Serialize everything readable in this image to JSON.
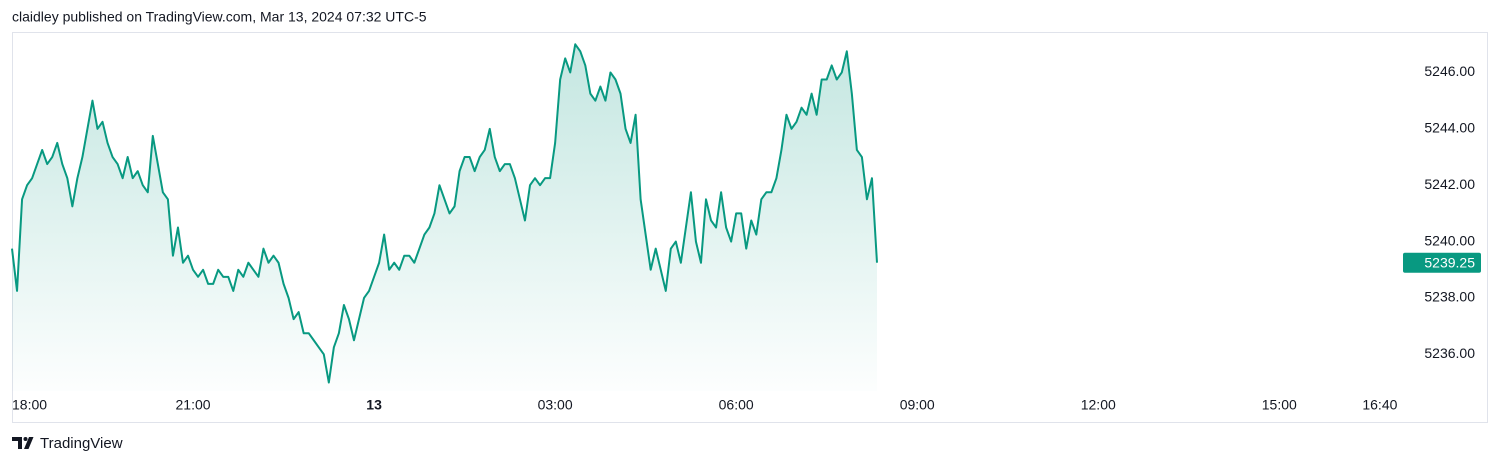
{
  "chart_data": {
    "type": "area",
    "title": "claidley published on TradingView.com, Mar 13, 2024 07:32 UTC-5",
    "brand": "TradingView",
    "color": "#089981",
    "grid": false,
    "last_price_label": "5239.25",
    "x": [
      "18:00",
      "18:05",
      "18:10",
      "18:15",
      "18:20",
      "18:25",
      "18:30",
      "18:35",
      "18:40",
      "18:45",
      "18:50",
      "18:55",
      "19:00",
      "19:05",
      "19:10",
      "19:15",
      "19:20",
      "19:25",
      "19:30",
      "19:35",
      "19:40",
      "19:45",
      "19:50",
      "19:55",
      "20:00",
      "20:05",
      "20:10",
      "20:15",
      "20:20",
      "20:25",
      "20:30",
      "20:35",
      "20:40",
      "20:45",
      "20:50",
      "20:55",
      "21:00",
      "21:05",
      "21:10",
      "21:15",
      "21:20",
      "21:25",
      "21:30",
      "21:35",
      "21:40",
      "21:45",
      "21:50",
      "21:55",
      "22:00",
      "22:05",
      "22:10",
      "22:15",
      "22:20",
      "22:25",
      "22:30",
      "22:35",
      "22:40",
      "22:45",
      "22:50",
      "22:55",
      "23:00",
      "23:05",
      "23:10",
      "23:15",
      "23:20",
      "23:25",
      "23:30",
      "23:35",
      "23:40",
      "23:45",
      "23:50",
      "23:55",
      "00:00",
      "00:05",
      "00:10",
      "00:15",
      "00:20",
      "00:25",
      "00:30",
      "00:35",
      "00:40",
      "00:45",
      "00:50",
      "00:55",
      "01:00",
      "01:05",
      "01:10",
      "01:15",
      "01:20",
      "01:25",
      "01:30",
      "01:35",
      "01:40",
      "01:45",
      "01:50",
      "01:55",
      "02:00",
      "02:05",
      "02:10",
      "02:15",
      "02:20",
      "02:25",
      "02:30",
      "02:35",
      "02:40",
      "02:45",
      "02:50",
      "02:55",
      "03:00",
      "03:05",
      "03:10",
      "03:15",
      "03:20",
      "03:25",
      "03:30",
      "03:35",
      "03:40",
      "03:45",
      "03:50",
      "03:55",
      "04:00",
      "04:05",
      "04:10",
      "04:15",
      "04:20",
      "04:25",
      "04:30",
      "04:35",
      "04:40",
      "04:45",
      "04:50",
      "04:55",
      "05:00",
      "05:05",
      "05:10",
      "05:15",
      "05:20",
      "05:25",
      "05:30",
      "05:35",
      "05:40",
      "05:45",
      "05:50",
      "05:55",
      "06:00",
      "06:05",
      "06:10",
      "06:15",
      "06:20",
      "06:25",
      "06:30",
      "06:35",
      "06:40",
      "06:45",
      "06:50",
      "06:55",
      "07:00",
      "07:05",
      "07:10",
      "07:15",
      "07:20",
      "07:25",
      "07:30",
      "07:35",
      "07:40",
      "07:45",
      "07:50",
      "07:55",
      "08:00",
      "08:05",
      "08:10",
      "08:15",
      "08:20"
    ],
    "values": [
      5239.75,
      5238.25,
      5241.5,
      5242,
      5242.25,
      5242.75,
      5243.25,
      5242.75,
      5243,
      5243.5,
      5242.75,
      5242.25,
      5241.25,
      5242.25,
      5243,
      5244,
      5245,
      5244,
      5244.25,
      5243.5,
      5243,
      5242.75,
      5242.25,
      5243,
      5242.25,
      5242.5,
      5242,
      5241.75,
      5243.75,
      5242.75,
      5241.75,
      5241.5,
      5239.5,
      5240.5,
      5239.25,
      5239.5,
      5239,
      5238.75,
      5239,
      5238.5,
      5238.5,
      5239,
      5238.75,
      5238.75,
      5238.25,
      5239,
      5238.75,
      5239.25,
      5239,
      5238.75,
      5239.75,
      5239.25,
      5239.5,
      5239.25,
      5238.5,
      5238,
      5237.25,
      5237.5,
      5236.75,
      5236.75,
      5236.5,
      5236.25,
      5236,
      5235,
      5236.25,
      5236.75,
      5237.75,
      5237.25,
      5236.5,
      5237.25,
      5238,
      5238.25,
      5238.75,
      5239.25,
      5240.25,
      5239,
      5239.25,
      5239,
      5239.5,
      5239.5,
      5239.25,
      5239.75,
      5240.25,
      5240.5,
      5241,
      5242,
      5241.5,
      5241,
      5241.25,
      5242.5,
      5243,
      5243,
      5242.5,
      5243,
      5243.25,
      5244,
      5243,
      5242.5,
      5242.75,
      5242.75,
      5242.25,
      5241.5,
      5240.75,
      5242,
      5242.25,
      5242,
      5242.25,
      5242.25,
      5243.5,
      5245.75,
      5246.5,
      5246,
      5247,
      5246.75,
      5246.25,
      5245.25,
      5245,
      5245.5,
      5245,
      5246,
      5245.75,
      5245.25,
      5244,
      5243.5,
      5244.5,
      5241.5,
      5240.25,
      5239,
      5239.75,
      5239,
      5238.25,
      5239.75,
      5240,
      5239.25,
      5240.5,
      5241.75,
      5240,
      5239.25,
      5241.5,
      5240.75,
      5240.5,
      5241.75,
      5240.5,
      5240,
      5241,
      5241,
      5239.75,
      5240.75,
      5240.25,
      5241.5,
      5241.75,
      5241.75,
      5242.25,
      5243.25,
      5244.5,
      5244,
      5244.25,
      5244.75,
      5244.5,
      5245.25,
      5244.5,
      5245.75,
      5245.75,
      5246.25,
      5245.75,
      5246,
      5246.75,
      5245.25,
      5243.25,
      5243,
      5241.5,
      5242.25,
      5239.25
    ],
    "xlim": [
      "18:00",
      "17:00"
    ],
    "xticks": [
      "18:00",
      "21:00",
      {
        "value": "00:00",
        "label": "13"
      },
      "03:00",
      "06:00",
      "09:00",
      "12:00",
      "15:00",
      "16:40"
    ],
    "ylim": [
      5234.7,
      5247.4
    ],
    "yticks": [
      {
        "value": 5236,
        "label": "5236.00"
      },
      {
        "value": 5238,
        "label": "5238.00"
      },
      {
        "value": 5240,
        "label": "5240.00"
      },
      {
        "value": 5242,
        "label": "5242.00"
      },
      {
        "value": 5244,
        "label": "5244.00"
      },
      {
        "value": 5246,
        "label": "5246.00"
      }
    ]
  }
}
